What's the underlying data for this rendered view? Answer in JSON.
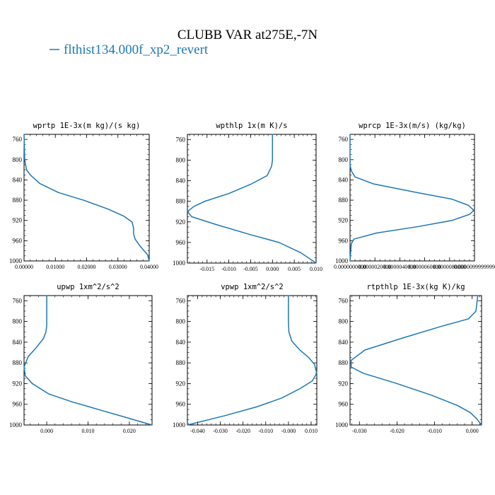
{
  "figure": {
    "title": "CLUBB VAR at275E,-7N",
    "legend_label": "flthist134.000f_xp2_revert",
    "line_color": "#1f77b4"
  },
  "chart_data": [
    {
      "type": "line",
      "title": "wprtp  1E-3x(m kg)/(s kg)",
      "xlim": [
        0.0,
        0.04
      ],
      "ylim": [
        1000,
        750
      ],
      "xticks": [
        "0.00000",
        "0.01000",
        "0.02000",
        "0.03000",
        "0.04000"
      ],
      "xtick_values": [
        0.0,
        0.01,
        0.02,
        0.03,
        0.04
      ],
      "yticks": [
        "760",
        "800",
        "840",
        "880",
        "920",
        "960",
        "1000"
      ],
      "ytick_values": [
        760,
        800,
        840,
        880,
        920,
        960,
        1000
      ],
      "series": [
        {
          "name": "flthist134.000f_xp2_revert",
          "x": [
            0.0,
            0.0002,
            0.0008,
            0.002,
            0.005,
            0.011,
            0.019,
            0.027,
            0.032,
            0.0345,
            0.035,
            0.035,
            0.0355,
            0.037,
            0.0395,
            0.04
          ],
          "y": [
            750,
            800,
            820,
            830,
            847,
            865,
            880,
            898,
            912,
            923,
            935,
            946,
            957,
            970,
            988,
            1000
          ]
        }
      ]
    },
    {
      "type": "line",
      "title": "wpthlp  1x(m K)/s",
      "xlim": [
        -0.0195,
        0.01
      ],
      "ylim": [
        1000,
        750
      ],
      "xticks": [
        "-0.015",
        "-0.010",
        "-0.005",
        "0.000",
        "0.005",
        "0.010"
      ],
      "xtick_values": [
        -0.015,
        -0.01,
        -0.005,
        0.0,
        0.005,
        0.01
      ],
      "yticks": [
        "760",
        "800",
        "840",
        "880",
        "920",
        "960",
        "1000"
      ],
      "ytick_values": [
        760,
        800,
        840,
        880,
        920,
        960,
        1000
      ],
      "series": [
        {
          "name": "flthist134.000f_xp2_revert",
          "x": [
            0.0,
            0.0,
            -0.0002,
            -0.0012,
            -0.005,
            -0.01,
            -0.0155,
            -0.018,
            -0.0195,
            -0.0185,
            -0.013,
            -0.005,
            0.0015,
            0.0065,
            0.01
          ],
          "y": [
            750,
            800,
            812,
            830,
            847,
            865,
            880,
            890,
            900,
            910,
            925,
            945,
            960,
            980,
            1000
          ]
        }
      ]
    },
    {
      "type": "line",
      "title": "wprcp  1E-3x(m/s) (kg/kg)",
      "xlim": [
        0.0,
        9.9999999e-06
      ],
      "ylim": [
        1000,
        750
      ],
      "xticks": [
        "0.0000000000",
        "0.0000020000",
        "0.0000040000",
        "0.0000060000",
        "0.0000080000",
        "0.0000099999999"
      ],
      "xtick_values": [
        0.0,
        2e-06,
        4e-06,
        6e-06,
        8e-06,
        9.9999999e-06
      ],
      "yticks": [
        "760",
        "800",
        "840",
        "880",
        "920",
        "960",
        "1000"
      ],
      "ytick_values": [
        760,
        800,
        840,
        880,
        920,
        960,
        1000
      ],
      "series": [
        {
          "name": "flthist134.000f_xp2_revert",
          "x": [
            0.0,
            0.0,
            1e-07,
            4e-07,
            1.9e-06,
            5.4e-06,
            8.2e-06,
            9.5e-06,
            9.95e-06,
            9.6e-06,
            8.2e-06,
            5.5e-06,
            2.1e-06,
            3e-07,
            1e-07,
            0.0
          ],
          "y": [
            750,
            810,
            822,
            834,
            848,
            865,
            878,
            890,
            900,
            908,
            920,
            932,
            945,
            957,
            966,
            1000
          ]
        }
      ]
    },
    {
      "type": "line",
      "title": "upwp  1xm^2/s^2",
      "xlim": [
        -0.0055,
        0.0255
      ],
      "ylim": [
        1000,
        750
      ],
      "xticks": [
        "0.000",
        "0.010",
        "0.020"
      ],
      "xtick_values": [
        0.0,
        0.01,
        0.02
      ],
      "yticks": [
        "760",
        "800",
        "840",
        "880",
        "920",
        "960",
        "1000"
      ],
      "ytick_values": [
        760,
        800,
        840,
        880,
        920,
        960,
        1000
      ],
      "series": [
        {
          "name": "flthist134.000f_xp2_revert",
          "x": [
            0.0,
            0.0,
            -0.0002,
            -0.0008,
            -0.0025,
            -0.0045,
            -0.0055,
            -0.0052,
            -0.0035,
            0.0005,
            0.006,
            0.0125,
            0.019,
            0.0255
          ],
          "y": [
            750,
            808,
            820,
            833,
            850,
            868,
            888,
            905,
            920,
            940,
            955,
            970,
            985,
            1000
          ]
        }
      ]
    },
    {
      "type": "line",
      "title": "vpwp  1xm^2/s^2",
      "xlim": [
        -0.0445,
        0.0125
      ],
      "ylim": [
        1000,
        750
      ],
      "xticks": [
        "-0.040",
        "-0.030",
        "-0.020",
        "-0.010",
        "-0.000",
        "0.010"
      ],
      "xtick_values": [
        -0.04,
        -0.03,
        -0.02,
        -0.01,
        0.0,
        0.01
      ],
      "yticks": [
        "760",
        "800",
        "840",
        "880",
        "920",
        "960",
        "1000"
      ],
      "ytick_values": [
        760,
        800,
        840,
        880,
        920,
        960,
        1000
      ],
      "series": [
        {
          "name": "flthist134.000f_xp2_revert",
          "x": [
            0.0,
            0.0,
            0.0002,
            0.0015,
            0.005,
            0.009,
            0.0115,
            0.0125,
            0.0105,
            0.005,
            -0.003,
            -0.014,
            -0.028,
            -0.0445
          ],
          "y": [
            750,
            800,
            820,
            838,
            855,
            870,
            883,
            900,
            915,
            930,
            948,
            965,
            982,
            1000
          ]
        }
      ]
    },
    {
      "type": "line",
      "title": "rtpthlp  1E-3x(kg K)/kg",
      "xlim": [
        -0.0325,
        0.0025
      ],
      "ylim": [
        1000,
        750
      ],
      "xticks": [
        "-0.030",
        "-0.020",
        "-0.010",
        "0.000"
      ],
      "xtick_values": [
        -0.03,
        -0.02,
        -0.01,
        0.0
      ],
      "yticks": [
        "760",
        "800",
        "840",
        "880",
        "920",
        "960",
        "1000"
      ],
      "ytick_values": [
        760,
        800,
        840,
        880,
        920,
        960,
        1000
      ],
      "series": [
        {
          "name": "flthist134.000f_xp2_revert",
          "x": [
            0.0015,
            0.001,
            -0.001,
            -0.0085,
            -0.0185,
            -0.0285,
            -0.0322,
            -0.0322,
            -0.029,
            -0.02,
            -0.011,
            -0.004,
            -0.0005,
            0.0012,
            0.0025
          ],
          "y": [
            750,
            780,
            795,
            810,
            832,
            855,
            875,
            888,
            900,
            920,
            942,
            962,
            976,
            988,
            1000
          ]
        }
      ]
    }
  ]
}
